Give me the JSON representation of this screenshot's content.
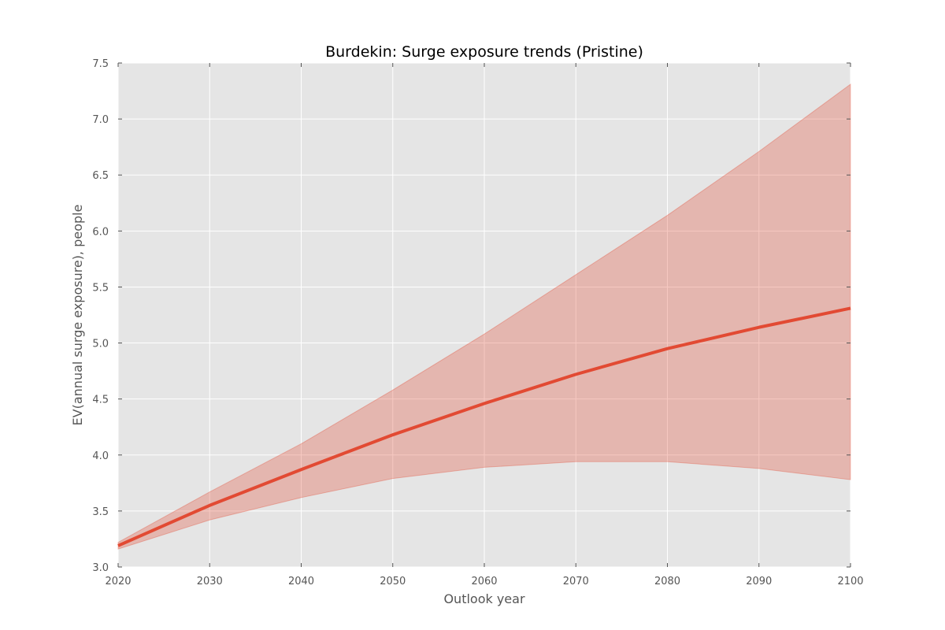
{
  "chart_data": {
    "type": "line",
    "title": "Burdekin: Surge exposure trends (Pristine)",
    "xlabel": "Outlook year",
    "ylabel": "EV(annual surge exposure), people",
    "xlim": [
      2020,
      2100
    ],
    "ylim": [
      3.0,
      7.5
    ],
    "x_ticks": [
      "2020",
      "2030",
      "2040",
      "2050",
      "2060",
      "2070",
      "2080",
      "2090",
      "2100"
    ],
    "y_ticks": [
      "3.0",
      "3.5",
      "4.0",
      "4.5",
      "5.0",
      "5.5",
      "6.0",
      "6.5",
      "7.0",
      "7.5"
    ],
    "grid": true,
    "x": [
      2020,
      2030,
      2040,
      2050,
      2060,
      2070,
      2080,
      2090,
      2100
    ],
    "series": [
      {
        "values": [
          3.19,
          3.55,
          3.87,
          4.18,
          4.46,
          4.72,
          4.95,
          5.14,
          5.31
        ],
        "color": "#e24a33"
      }
    ],
    "band": {
      "upper": [
        3.22,
        3.67,
        4.1,
        4.58,
        5.08,
        5.61,
        6.14,
        6.71,
        7.31
      ],
      "lower": [
        3.16,
        3.42,
        3.62,
        3.79,
        3.89,
        3.94,
        3.94,
        3.88,
        3.78
      ],
      "color": "#e24a33"
    },
    "colors": {
      "background": "#e5e5e5",
      "grid": "#ffffff",
      "line": "#e24a33",
      "band": "#e24a33"
    }
  }
}
